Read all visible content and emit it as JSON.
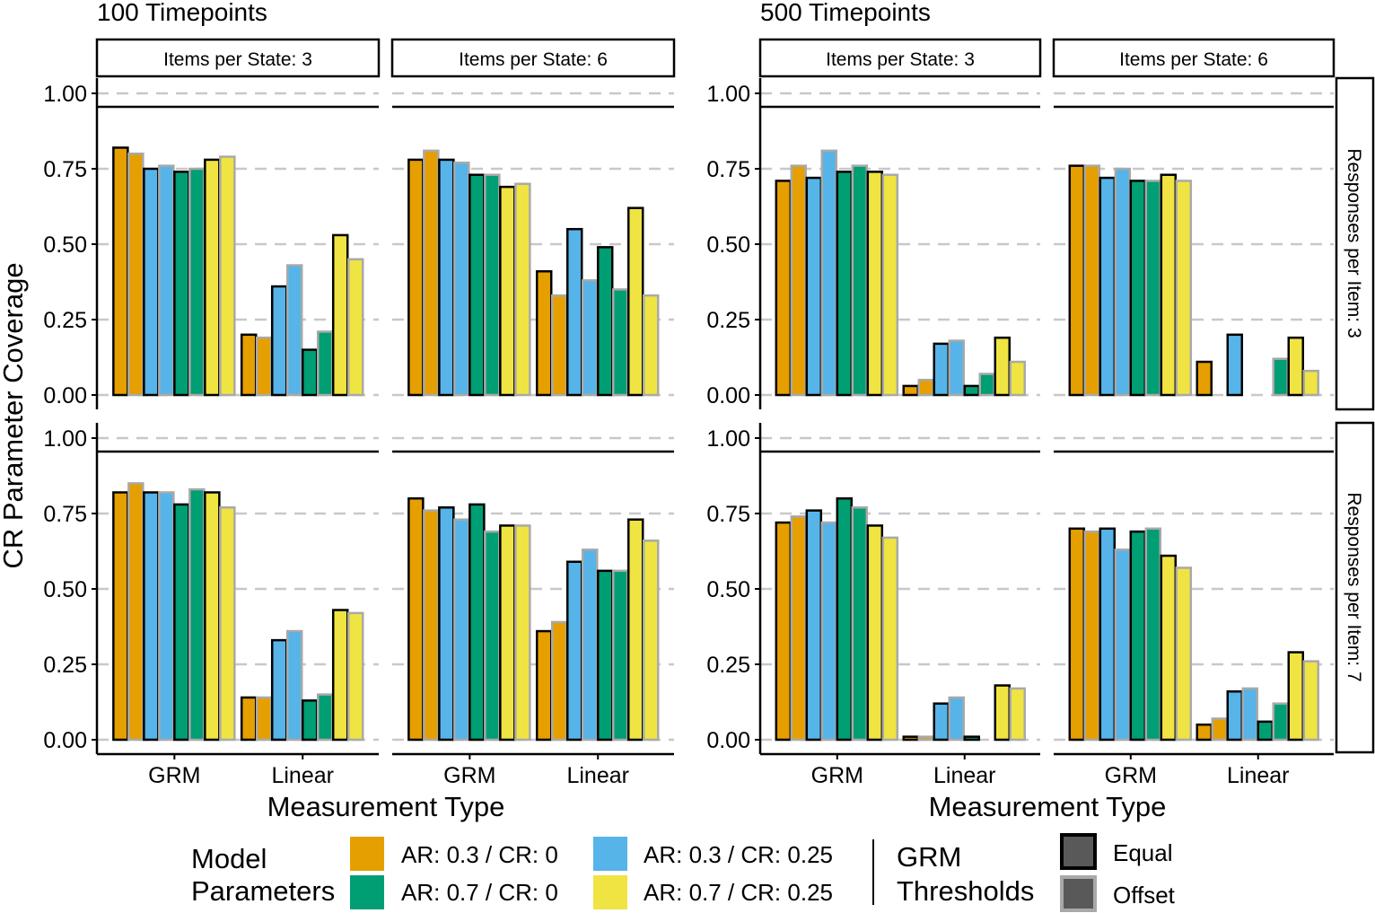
{
  "chart_data": {
    "type": "bar",
    "ylabel": "CR Parameter Coverage",
    "xlabel": "Measurement Type",
    "categories": [
      "GRM",
      "Linear"
    ],
    "y_ticks": [
      "0.00",
      "0.25",
      "0.50",
      "0.75",
      "1.00"
    ],
    "ylim": [
      0,
      1.05
    ],
    "grid": "horizontal dashed at 0.25 steps",
    "y_axis_break": "between 0.75 and 1.00",
    "blocks": [
      {
        "title": "100 Timepoints",
        "columns": [
          "Items per State: 3",
          "Items per State: 6"
        ]
      },
      {
        "title": "500 Timepoints",
        "columns": [
          "Items per State: 3",
          "Items per State: 6"
        ]
      }
    ],
    "rows": [
      "Responses per Item: 3",
      "Responses per Item: 7"
    ],
    "series": [
      {
        "model": "AR: 0.3 / CR: 0",
        "thresholds": "Equal"
      },
      {
        "model": "AR: 0.3 / CR: 0",
        "thresholds": "Offset"
      },
      {
        "model": "AR: 0.3 / CR: 0.25",
        "thresholds": "Equal"
      },
      {
        "model": "AR: 0.3 / CR: 0.25",
        "thresholds": "Offset"
      },
      {
        "model": "AR: 0.7 / CR: 0",
        "thresholds": "Equal"
      },
      {
        "model": "AR: 0.7 / CR: 0",
        "thresholds": "Offset"
      },
      {
        "model": "AR: 0.7 / CR: 0.25",
        "thresholds": "Equal"
      },
      {
        "model": "AR: 0.7 / CR: 0.25",
        "thresholds": "Offset"
      }
    ],
    "panels": [
      {
        "timepoints": "100 Timepoints",
        "items_per_state": "Items per State: 3",
        "responses_per_item": "Responses per Item: 3",
        "values": {
          "GRM": [
            0.82,
            0.8,
            0.75,
            0.76,
            0.74,
            0.75,
            0.78,
            0.79
          ],
          "Linear": [
            0.2,
            0.19,
            0.36,
            0.43,
            0.15,
            0.21,
            0.53,
            0.45
          ]
        }
      },
      {
        "timepoints": "100 Timepoints",
        "items_per_state": "Items per State: 6",
        "responses_per_item": "Responses per Item: 3",
        "values": {
          "GRM": [
            0.78,
            0.81,
            0.78,
            0.77,
            0.73,
            0.73,
            0.69,
            0.7
          ],
          "Linear": [
            0.41,
            0.33,
            0.55,
            0.38,
            0.49,
            0.35,
            0.62,
            0.33
          ]
        }
      },
      {
        "timepoints": "500 Timepoints",
        "items_per_state": "Items per State: 3",
        "responses_per_item": "Responses per Item: 3",
        "values": {
          "GRM": [
            0.71,
            0.76,
            0.72,
            0.81,
            0.74,
            0.76,
            0.74,
            0.73
          ],
          "Linear": [
            0.03,
            0.05,
            0.17,
            0.18,
            0.03,
            0.07,
            0.19,
            0.11
          ]
        }
      },
      {
        "timepoints": "500 Timepoints",
        "items_per_state": "Items per State: 6",
        "responses_per_item": "Responses per Item: 3",
        "values": {
          "GRM": [
            0.76,
            0.76,
            0.72,
            0.75,
            0.71,
            0.71,
            0.73,
            0.71
          ],
          "Linear": [
            0.11,
            0.0,
            0.2,
            0.0,
            0.0,
            0.12,
            0.19,
            0.08
          ]
        }
      },
      {
        "timepoints": "100 Timepoints",
        "items_per_state": "Items per State: 3",
        "responses_per_item": "Responses per Item: 7",
        "values": {
          "GRM": [
            0.82,
            0.85,
            0.82,
            0.82,
            0.78,
            0.83,
            0.82,
            0.77
          ],
          "Linear": [
            0.14,
            0.14,
            0.33,
            0.36,
            0.13,
            0.15,
            0.43,
            0.42
          ]
        }
      },
      {
        "timepoints": "100 Timepoints",
        "items_per_state": "Items per State: 6",
        "responses_per_item": "Responses per Item: 7",
        "values": {
          "GRM": [
            0.8,
            0.76,
            0.77,
            0.73,
            0.78,
            0.69,
            0.71,
            0.71
          ],
          "Linear": [
            0.36,
            0.39,
            0.59,
            0.63,
            0.56,
            0.56,
            0.73,
            0.66
          ]
        }
      },
      {
        "timepoints": "500 Timepoints",
        "items_per_state": "Items per State: 3",
        "responses_per_item": "Responses per Item: 7",
        "values": {
          "GRM": [
            0.72,
            0.74,
            0.76,
            0.72,
            0.8,
            0.77,
            0.71,
            0.67
          ],
          "Linear": [
            0.01,
            0.01,
            0.12,
            0.14,
            0.01,
            0.0,
            0.18,
            0.17
          ]
        }
      },
      {
        "timepoints": "500 Timepoints",
        "items_per_state": "Items per State: 6",
        "responses_per_item": "Responses per Item: 7",
        "values": {
          "GRM": [
            0.7,
            0.69,
            0.7,
            0.63,
            0.69,
            0.7,
            0.61,
            0.57
          ],
          "Linear": [
            0.05,
            0.07,
            0.16,
            0.17,
            0.06,
            0.12,
            0.29,
            0.26
          ]
        }
      }
    ]
  },
  "colors": {
    "AR: 0.3 / CR: 0": "#E69F00",
    "AR: 0.7 / CR: 0": "#009E73",
    "AR: 0.3 / CR: 0.25": "#56B4E9",
    "AR: 0.7 / CR: 0.25": "#F0E442",
    "Equal": "#000000",
    "Offset": "#A9A9A9",
    "grid": "#C8C8C8",
    "legend_key_fill": "#595959"
  },
  "legend": {
    "model_title_line1": "Model",
    "model_title_line2": "Parameters",
    "items": [
      {
        "label": "AR: 0.3 / CR: 0",
        "color": "#E69F00"
      },
      {
        "label": "AR: 0.3 / CR: 0.25",
        "color": "#56B4E9"
      },
      {
        "label": "AR: 0.7 / CR: 0",
        "color": "#009E73"
      },
      {
        "label": "AR: 0.7 / CR: 0.25",
        "color": "#F0E442"
      }
    ],
    "thresholds_title_line1": "GRM",
    "thresholds_title_line2": "Thresholds",
    "threshold_items": [
      {
        "label": "Equal",
        "outline": "#000000"
      },
      {
        "label": "Offset",
        "outline": "#A9A9A9"
      }
    ]
  }
}
